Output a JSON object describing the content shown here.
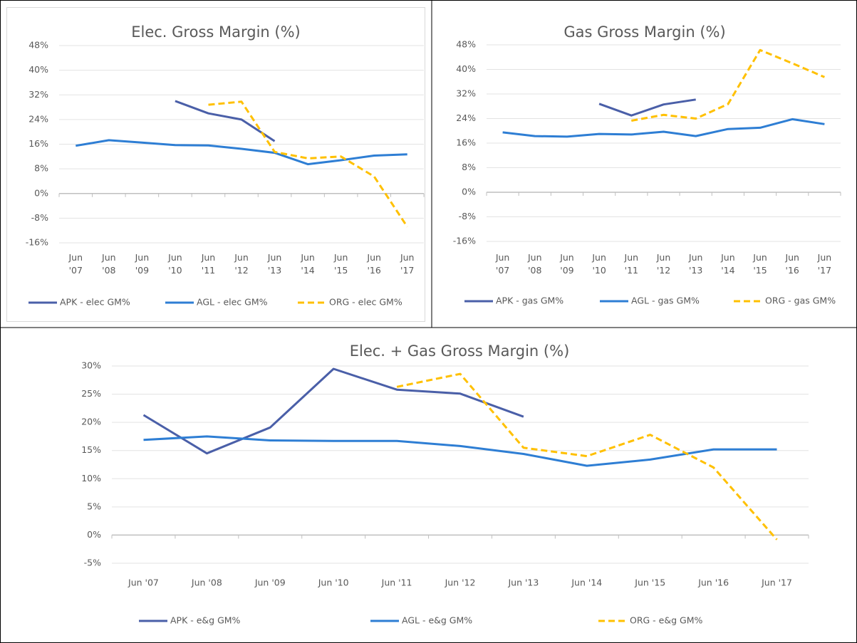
{
  "chart_data": [
    {
      "type": "line",
      "title": "Elec. Gross Margin (%)",
      "categories": [
        "Jun '07",
        "Jun '08",
        "Jun '09",
        "Jun '10",
        "Jun '11",
        "Jun '12",
        "Jun '13",
        "Jun '14",
        "Jun '15",
        "Jun '16",
        "Jun '17"
      ],
      "ylim": [
        -16,
        48
      ],
      "yticks": [
        {
          "value": -16,
          "label": "-16%"
        },
        {
          "value": -8,
          "label": "-8%"
        },
        {
          "value": 0,
          "label": "0%"
        },
        {
          "value": 8,
          "label": "8%"
        },
        {
          "value": 16,
          "label": "16%"
        },
        {
          "value": 24,
          "label": "24%"
        },
        {
          "value": 32,
          "label": "32%"
        },
        {
          "value": 40,
          "label": "40%"
        },
        {
          "value": 48,
          "label": "48%"
        }
      ],
      "grid": true,
      "legend": "bottom",
      "series": [
        {
          "name": "APK - elec GM%",
          "color": "#4a5fa8",
          "dash": false,
          "values": [
            null,
            null,
            null,
            30,
            26,
            24,
            17,
            null,
            null,
            null,
            null
          ]
        },
        {
          "name": "AGL - elec GM%",
          "color": "#2e7ed4",
          "dash": false,
          "values": [
            15.5,
            17.3,
            16.5,
            15.7,
            15.6,
            14.5,
            13.2,
            9.5,
            10.8,
            12.3,
            12.7
          ]
        },
        {
          "name": "ORG - elec GM%",
          "color": "#ffc000",
          "dash": true,
          "values": [
            null,
            null,
            null,
            null,
            28.8,
            29.8,
            13.5,
            11.4,
            12,
            5.5,
            -10.8
          ]
        }
      ]
    },
    {
      "type": "line",
      "title": "Gas Gross Margin (%)",
      "categories": [
        "Jun '07",
        "Jun '08",
        "Jun '09",
        "Jun '10",
        "Jun '11",
        "Jun '12",
        "Jun '13",
        "Jun '14",
        "Jun '15",
        "Jun '16",
        "Jun '17"
      ],
      "ylim": [
        -16,
        48
      ],
      "yticks": [
        {
          "value": -16,
          "label": "-16%"
        },
        {
          "value": -8,
          "label": "-8%"
        },
        {
          "value": 0,
          "label": "0%"
        },
        {
          "value": 8,
          "label": "8%"
        },
        {
          "value": 16,
          "label": "16%"
        },
        {
          "value": 24,
          "label": "24%"
        },
        {
          "value": 32,
          "label": "32%"
        },
        {
          "value": 40,
          "label": "40%"
        },
        {
          "value": 48,
          "label": "48%"
        }
      ],
      "grid": true,
      "legend": "bottom",
      "series": [
        {
          "name": "APK - gas GM%",
          "color": "#4a5fa8",
          "dash": false,
          "values": [
            null,
            null,
            null,
            28.8,
            25,
            28.6,
            30.2,
            null,
            null,
            null,
            null
          ]
        },
        {
          "name": "AGL - gas GM%",
          "color": "#2e7ed4",
          "dash": false,
          "values": [
            19.5,
            18.3,
            18.1,
            19,
            18.8,
            19.7,
            18.3,
            20.6,
            21,
            23.8,
            22.2
          ]
        },
        {
          "name": "ORG - gas GM%",
          "color": "#ffc000",
          "dash": true,
          "values": [
            null,
            null,
            null,
            null,
            23.3,
            25.2,
            24,
            28.7,
            46.3,
            42,
            37.5
          ]
        }
      ]
    },
    {
      "type": "line",
      "title": "Elec. + Gas Gross Margin (%)",
      "categories": [
        "Jun '07",
        "Jun '08",
        "Jun '09",
        "Jun '10",
        "Jun '11",
        "Jun '12",
        "Jun '13",
        "Jun '14",
        "Jun '15",
        "Jun '16",
        "Jun '17"
      ],
      "ylim": [
        -5,
        30
      ],
      "yticks": [
        {
          "value": -5,
          "label": "-5%"
        },
        {
          "value": 0,
          "label": "0%"
        },
        {
          "value": 5,
          "label": "5%"
        },
        {
          "value": 10,
          "label": "10%"
        },
        {
          "value": 15,
          "label": "15%"
        },
        {
          "value": 20,
          "label": "20%"
        },
        {
          "value": 25,
          "label": "25%"
        },
        {
          "value": 30,
          "label": "30%"
        }
      ],
      "grid": true,
      "legend": "bottom",
      "series": [
        {
          "name": "APK - e&g GM%",
          "color": "#4a5fa8",
          "dash": false,
          "values": [
            21.3,
            14.5,
            19.1,
            29.5,
            25.8,
            25.1,
            21,
            null,
            null,
            null,
            null
          ]
        },
        {
          "name": "AGL - e&g GM%",
          "color": "#2e7ed4",
          "dash": false,
          "values": [
            16.9,
            17.5,
            16.8,
            16.7,
            16.7,
            15.8,
            14.4,
            12.3,
            13.4,
            15.2,
            15.2
          ]
        },
        {
          "name": "ORG - e&g GM%",
          "color": "#ffc000",
          "dash": true,
          "values": [
            null,
            null,
            null,
            null,
            26.3,
            28.6,
            15.5,
            14,
            17.8,
            12,
            -0.8
          ]
        }
      ]
    }
  ]
}
